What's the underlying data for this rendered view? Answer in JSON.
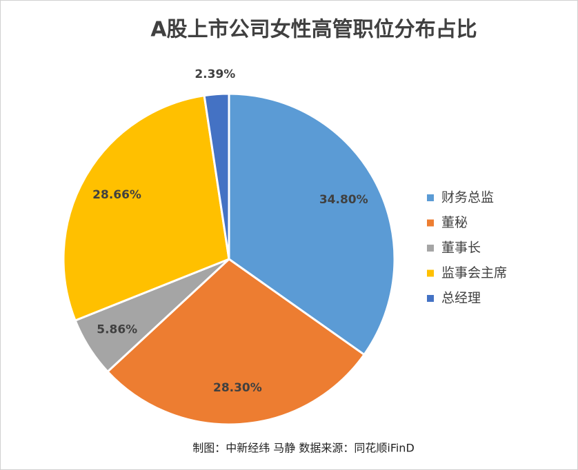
{
  "chart_data": {
    "type": "pie",
    "title": "A股上市公司女性高管职位分布占比",
    "categories": [
      "财务总监",
      "董秘",
      "董事长",
      "监事会主席",
      "总经理"
    ],
    "values": [
      34.8,
      28.3,
      5.86,
      28.66,
      2.39
    ],
    "value_labels": [
      "34.80%",
      "28.30%",
      "5.86%",
      "28.66%",
      "2.39%"
    ],
    "colors": [
      "#5b9bd5",
      "#ed7d31",
      "#a5a5a5",
      "#ffc000",
      "#4472c4"
    ],
    "legend": "right",
    "source": "制图：中新经纬 马静 数据来源：同花顺iFinD"
  }
}
